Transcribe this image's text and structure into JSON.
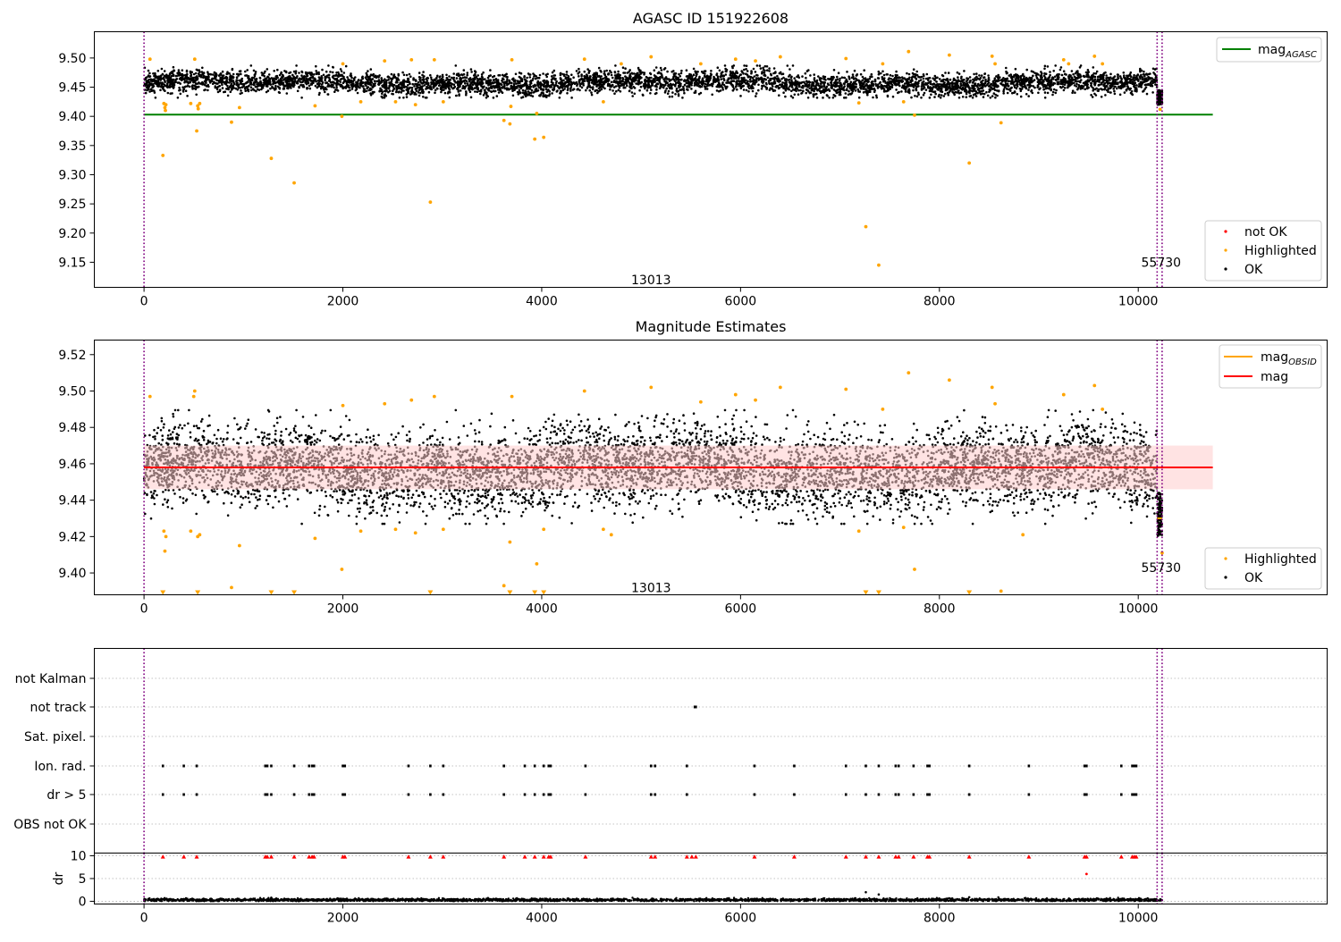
{
  "chart_data": [
    {
      "type": "scatter",
      "title": "AGASC ID 151922608",
      "xlim": [
        -500,
        11900
      ],
      "ylim": [
        9.107,
        9.545
      ],
      "x_ticks": [
        0,
        2000,
        4000,
        6000,
        8000,
        10000
      ],
      "x_tick_labels": [
        "0",
        "2000",
        "4000",
        "6000",
        "8000",
        "10000"
      ],
      "y_ticks": [
        9.15,
        9.2,
        9.25,
        9.3,
        9.35,
        9.4,
        9.45,
        9.5
      ],
      "y_tick_labels": [
        "9.15",
        "9.20",
        "9.25",
        "9.30",
        "9.35",
        "9.40",
        "9.45",
        "9.50"
      ],
      "reference_line": {
        "name": "mag_AGASC",
        "y": 9.403,
        "x_range": [
          0,
          10750
        ],
        "color": "#008000"
      },
      "observation_boundaries": [
        0,
        10190,
        10240
      ],
      "annotations": [
        {
          "text": "13013",
          "x": 5100,
          "y": 9.12
        },
        {
          "text": "55730",
          "x": 10230,
          "y": 9.15
        }
      ],
      "legend_top": {
        "position": "top-right",
        "entries": [
          {
            "label": "mag",
            "subscript": "AGASC",
            "color": "#008000"
          }
        ]
      },
      "legend_bottom": {
        "position": "bottom-right",
        "entries": [
          {
            "label": "not OK",
            "color": "#ff0000"
          },
          {
            "label": "Highlighted",
            "color": "#ffa500"
          },
          {
            "label": "OK",
            "color": "#000000"
          }
        ]
      },
      "series": [
        {
          "name": "OK",
          "color": "#000000",
          "band_center": 9.457,
          "band_halfwidth": 0.025,
          "x_range": [
            0,
            10240
          ],
          "drop_segment": {
            "x_range": [
              10190,
              10240
            ],
            "y_range": [
              9.42,
              9.445
            ]
          }
        },
        {
          "name": "Highlighted",
          "color": "#ffa500",
          "points": [
            [
              60,
              9.498
            ],
            [
              190,
              9.333
            ],
            [
              200,
              9.422
            ],
            [
              210,
              9.415
            ],
            [
              215,
              9.41
            ],
            [
              220,
              9.42
            ],
            [
              470,
              9.422
            ],
            [
              510,
              9.498
            ],
            [
              530,
              9.375
            ],
            [
              540,
              9.418
            ],
            [
              545,
              9.413
            ],
            [
              560,
              9.422
            ],
            [
              880,
              9.39
            ],
            [
              960,
              9.415
            ],
            [
              1280,
              9.328
            ],
            [
              1510,
              9.286
            ],
            [
              1720,
              9.418
            ],
            [
              1990,
              9.4
            ],
            [
              2000,
              9.49
            ],
            [
              2180,
              9.425
            ],
            [
              2420,
              9.495
            ],
            [
              2530,
              9.425
            ],
            [
              2690,
              9.497
            ],
            [
              2730,
              9.42
            ],
            [
              2880,
              9.253
            ],
            [
              2920,
              9.497
            ],
            [
              3010,
              9.425
            ],
            [
              3620,
              9.393
            ],
            [
              3680,
              9.387
            ],
            [
              3690,
              9.417
            ],
            [
              3700,
              9.497
            ],
            [
              3930,
              9.361
            ],
            [
              3950,
              9.405
            ],
            [
              4020,
              9.364
            ],
            [
              4430,
              9.498
            ],
            [
              4620,
              9.425
            ],
            [
              4800,
              9.49
            ],
            [
              5100,
              9.502
            ],
            [
              5600,
              9.49
            ],
            [
              5950,
              9.498
            ],
            [
              6150,
              9.495
            ],
            [
              6400,
              9.502
            ],
            [
              7060,
              9.499
            ],
            [
              7190,
              9.423
            ],
            [
              7260,
              9.211
            ],
            [
              7390,
              9.145
            ],
            [
              7430,
              9.49
            ],
            [
              7640,
              9.425
            ],
            [
              7690,
              9.511
            ],
            [
              7750,
              9.402
            ],
            [
              8100,
              9.505
            ],
            [
              8300,
              9.32
            ],
            [
              8530,
              9.503
            ],
            [
              8560,
              9.49
            ],
            [
              8620,
              9.389
            ],
            [
              9250,
              9.497
            ],
            [
              9300,
              9.49
            ],
            [
              9560,
              9.503
            ],
            [
              9640,
              9.49
            ],
            [
              10220,
              9.412
            ]
          ]
        }
      ]
    },
    {
      "type": "scatter",
      "title": "Magnitude Estimates",
      "xlim": [
        -500,
        11900
      ],
      "ylim": [
        9.388,
        9.528
      ],
      "x_ticks": [
        0,
        2000,
        4000,
        6000,
        8000,
        10000
      ],
      "x_tick_labels": [
        "0",
        "2000",
        "4000",
        "6000",
        "8000",
        "10000"
      ],
      "y_ticks": [
        9.4,
        9.42,
        9.44,
        9.46,
        9.48,
        9.5,
        9.52
      ],
      "y_tick_labels": [
        "9.40",
        "9.42",
        "9.44",
        "9.46",
        "9.48",
        "9.50",
        "9.52"
      ],
      "mean_line": {
        "name": "mag",
        "y": 9.458,
        "x_range": [
          0,
          10750
        ],
        "color": "#ff0000"
      },
      "error_band": {
        "y_range": [
          9.446,
          9.47
        ],
        "color": "#ffcccc"
      },
      "obsid_line": {
        "name": "mag_OBSID",
        "color": "#ffa500",
        "segments": [
          {
            "x_range": [
              0,
              10190
            ],
            "y": 9.458
          },
          {
            "x_range": [
              10190,
              10240
            ],
            "y": 9.43
          }
        ]
      },
      "observation_boundaries": [
        0,
        10190,
        10240
      ],
      "annotations": [
        {
          "text": "13013",
          "x": 5100,
          "y": 9.392
        },
        {
          "text": "55730",
          "x": 10230,
          "y": 9.403
        }
      ],
      "legend_top": {
        "position": "top-right",
        "entries": [
          {
            "label": "mag",
            "subscript": "OBSID",
            "color": "#ffa500"
          },
          {
            "label": "mag",
            "color": "#ff0000"
          }
        ]
      },
      "legend_bottom": {
        "position": "bottom-right",
        "entries": [
          {
            "label": "Highlighted",
            "color": "#ffa500"
          },
          {
            "label": "OK",
            "color": "#000000"
          }
        ]
      },
      "series": [
        {
          "name": "OK",
          "color": "#000000",
          "band_center": 9.457,
          "band_halfwidth": 0.025,
          "x_range": [
            0,
            10240
          ]
        },
        {
          "name": "Highlighted",
          "color": "#ffa500",
          "points": [
            [
              60,
              9.497
            ],
            [
              200,
              9.423
            ],
            [
              210,
              9.412
            ],
            [
              220,
              9.42
            ],
            [
              470,
              9.423
            ],
            [
              500,
              9.497
            ],
            [
              510,
              9.5
            ],
            [
              540,
              9.42
            ],
            [
              560,
              9.421
            ],
            [
              880,
              9.392
            ],
            [
              960,
              9.415
            ],
            [
              1720,
              9.419
            ],
            [
              1990,
              9.402
            ],
            [
              2000,
              9.492
            ],
            [
              2180,
              9.423
            ],
            [
              2420,
              9.493
            ],
            [
              2530,
              9.424
            ],
            [
              2690,
              9.495
            ],
            [
              2730,
              9.422
            ],
            [
              2920,
              9.497
            ],
            [
              3010,
              9.424
            ],
            [
              3620,
              9.393
            ],
            [
              3680,
              9.417
            ],
            [
              3700,
              9.497
            ],
            [
              3950,
              9.405
            ],
            [
              4020,
              9.424
            ],
            [
              4430,
              9.5
            ],
            [
              4620,
              9.424
            ],
            [
              4700,
              9.421
            ],
            [
              5100,
              9.502
            ],
            [
              5600,
              9.494
            ],
            [
              5950,
              9.498
            ],
            [
              6150,
              9.495
            ],
            [
              6400,
              9.502
            ],
            [
              7060,
              9.501
            ],
            [
              7190,
              9.423
            ],
            [
              7430,
              9.49
            ],
            [
              7640,
              9.425
            ],
            [
              7690,
              9.51
            ],
            [
              7750,
              9.402
            ],
            [
              8100,
              9.506
            ],
            [
              8530,
              9.502
            ],
            [
              8560,
              9.493
            ],
            [
              8620,
              9.39
            ],
            [
              8840,
              9.421
            ],
            [
              9250,
              9.498
            ],
            [
              9560,
              9.503
            ],
            [
              9640,
              9.49
            ],
            [
              10240,
              9.411
            ]
          ]
        },
        {
          "name": "Highlighted (below range)",
          "color": "#ffa500",
          "marker": "triangle-down",
          "y": 9.389,
          "x": [
            190,
            540,
            1280,
            1510,
            2880,
            3680,
            3930,
            4020,
            7260,
            7390,
            8300
          ]
        }
      ]
    },
    {
      "type": "scatter",
      "title": "",
      "xlim": [
        -500,
        11900
      ],
      "categories": [
        "not Kalman",
        "not track",
        "Sat. pixel.",
        "Ion. rad.",
        "dr > 5",
        "OBS not OK"
      ],
      "flags": {
        "not track": [
          5540,
          5550
        ],
        "Ion. rad.": [
          190,
          400,
          530,
          1220,
          1240,
          1280,
          1510,
          1660,
          1690,
          1710,
          2000,
          2020,
          2660,
          2880,
          3010,
          3620,
          3830,
          3930,
          4020,
          4070,
          4090,
          4440,
          5100,
          5140,
          5460,
          6140,
          6540,
          7060,
          7260,
          7390,
          7560,
          7590,
          7740,
          7880,
          7900,
          8300,
          8900,
          9460,
          9480,
          9830,
          9940,
          9960,
          9980
        ],
        "dr > 5": [
          190,
          400,
          530,
          1220,
          1240,
          1280,
          1510,
          1660,
          1690,
          1710,
          2000,
          2020,
          2660,
          2880,
          3010,
          3620,
          3830,
          3930,
          4020,
          4070,
          4090,
          4440,
          5100,
          5140,
          5460,
          6140,
          6540,
          7060,
          7260,
          7390,
          7560,
          7590,
          7740,
          7880,
          7900,
          8300,
          8900,
          9460,
          9480,
          9830,
          9940,
          9960,
          9980
        ]
      },
      "observation_boundaries": [
        0,
        10190,
        10240
      ]
    },
    {
      "type": "scatter",
      "title": "",
      "ylabel": "dr",
      "xlim": [
        -500,
        11900
      ],
      "ylim": [
        -0.6,
        10.6
      ],
      "x_ticks": [
        0,
        2000,
        4000,
        6000,
        8000,
        10000
      ],
      "x_tick_labels": [
        "0",
        "2000",
        "4000",
        "6000",
        "8000",
        "10000"
      ],
      "y_ticks": [
        0,
        5,
        10
      ],
      "y_tick_labels": [
        "0",
        "5",
        "10"
      ],
      "baseline": {
        "y_center": 0.3,
        "y_spread": 0.25,
        "x_range": [
          0,
          10240
        ],
        "color": "#000000"
      },
      "outliers_black": [
        [
          7260,
          2.0
        ],
        [
          7390,
          1.5
        ],
        [
          8300,
          0.9
        ],
        [
          1280,
          0.8
        ]
      ],
      "clipped_red": {
        "marker": "triangle-up",
        "y": 9.8,
        "color": "#ff0000",
        "x": [
          190,
          400,
          530,
          1220,
          1240,
          1280,
          1510,
          1660,
          1690,
          1710,
          2000,
          2020,
          2660,
          2880,
          3010,
          3620,
          3830,
          3930,
          4020,
          4070,
          4090,
          4440,
          5100,
          5140,
          5460,
          5510,
          5550,
          6140,
          6540,
          7060,
          7260,
          7390,
          7560,
          7590,
          7740,
          7880,
          7900,
          8300,
          8900,
          9460,
          9480,
          9830,
          9940,
          9960,
          9980
        ]
      },
      "outliers_red": [
        [
          9480,
          6.0
        ]
      ],
      "observation_boundaries": [
        0,
        10190,
        10240
      ]
    }
  ]
}
